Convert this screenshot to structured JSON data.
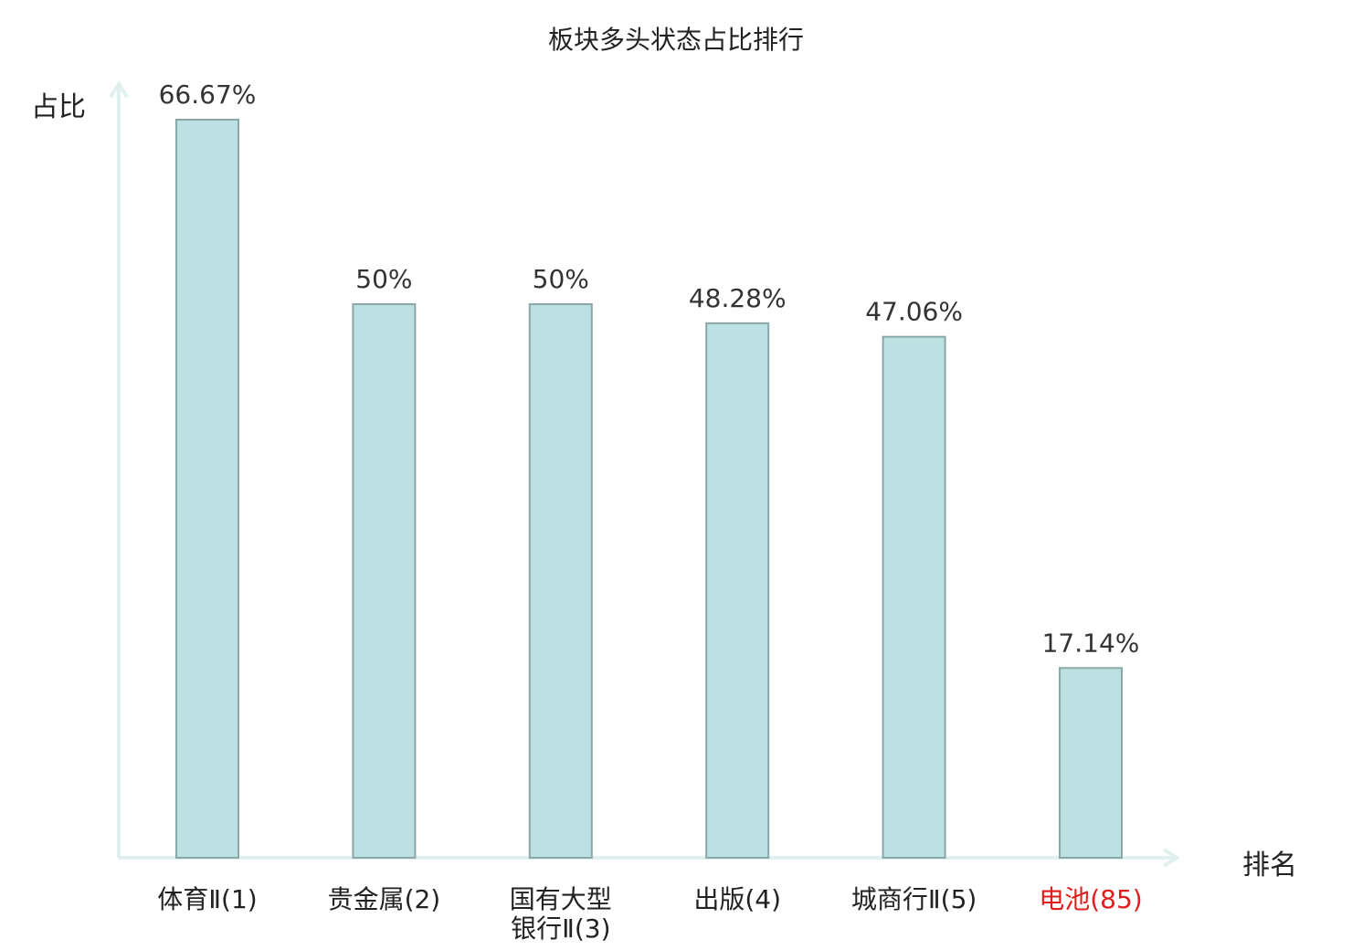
{
  "chart_data": {
    "type": "bar",
    "title": "板块多头状态占比排行",
    "ylabel": "占比",
    "xlabel": "排名",
    "ylim": [
      0,
      70
    ],
    "categories": [
      [
        "体育Ⅱ(1)"
      ],
      [
        "贵金属(2)"
      ],
      [
        "国有大型",
        "银行Ⅱ(3)"
      ],
      [
        "出版(4)"
      ],
      [
        "城商行Ⅱ(5)"
      ],
      [
        "电池(85)"
      ]
    ],
    "values": [
      66.67,
      50,
      50,
      48.28,
      47.06,
      17.14
    ],
    "value_labels": [
      "66.67%",
      "50%",
      "50%",
      "48.28%",
      "47.06%",
      "17.14%"
    ],
    "highlight_index": 5,
    "colors": {
      "bar_fill": "#bde0e3",
      "bar_stroke": "#8aa7aa",
      "axis": "#dff0ee",
      "highlight": "#e11d1d"
    },
    "grid": false
  }
}
